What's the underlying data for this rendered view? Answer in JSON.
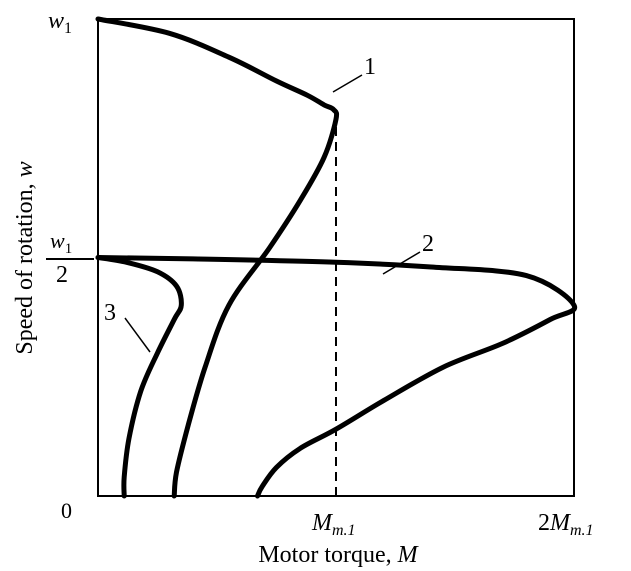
{
  "chart_data": {
    "type": "line",
    "title": "",
    "xlabel": "Motor torque, ",
    "xlabel_var": "M",
    "ylabel": "Speed of rotation, ",
    "ylabel_var": "w",
    "xlim": [
      0,
      2
    ],
    "ylim": [
      0,
      1
    ],
    "x_ticks": [
      {
        "value": 1,
        "prefix": "",
        "main": "M",
        "sub": "m.1"
      },
      {
        "value": 2,
        "prefix": "2",
        "main": "M",
        "sub": "m.1"
      }
    ],
    "y_ticks": [
      {
        "value": 0,
        "label": "0"
      },
      {
        "value": 0.5,
        "numer": "w",
        "numer_sub": "1",
        "denom": "2"
      },
      {
        "value": 1,
        "main": "w",
        "sub": "1"
      }
    ],
    "reference_line": {
      "x": 1,
      "y_from": 0,
      "y_to": 0.81,
      "style": "dashed"
    },
    "series": [
      {
        "label": "1",
        "x": [
          0.0,
          0.3,
          0.55,
          0.75,
          0.88,
          0.95,
          0.99,
          1.0,
          0.95,
          0.85,
          0.72,
          0.55,
          0.45,
          0.38,
          0.33,
          0.32
        ],
        "y": [
          1.0,
          0.97,
          0.92,
          0.87,
          0.84,
          0.82,
          0.81,
          0.79,
          0.71,
          0.62,
          0.52,
          0.4,
          0.27,
          0.15,
          0.05,
          0.0
        ]
      },
      {
        "label": "2",
        "x": [
          0.0,
          0.4,
          1.0,
          1.4,
          1.8,
          2.0,
          1.9,
          1.7,
          1.45,
          1.2,
          1.0,
          0.85,
          0.75,
          0.69,
          0.67
        ],
        "y": [
          0.5,
          0.497,
          0.49,
          0.48,
          0.462,
          0.4,
          0.37,
          0.32,
          0.27,
          0.2,
          0.14,
          0.1,
          0.06,
          0.02,
          0.0
        ]
      },
      {
        "label": "3",
        "x": [
          0.0,
          0.12,
          0.25,
          0.33,
          0.35,
          0.32,
          0.25,
          0.18,
          0.13,
          0.11,
          0.11
        ],
        "y": [
          0.5,
          0.49,
          0.47,
          0.44,
          0.4,
          0.37,
          0.3,
          0.22,
          0.12,
          0.04,
          0.0
        ]
      }
    ]
  }
}
